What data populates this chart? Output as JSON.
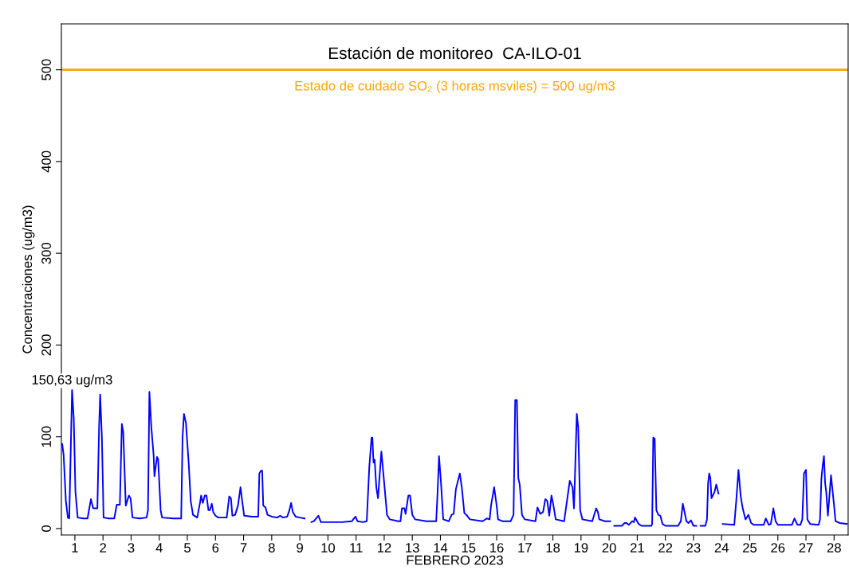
{
  "chart_data": {
    "type": "line",
    "title": "Estación de monitoreo  CA-ILO-01",
    "xlabel": "FEBRERO 2023",
    "ylabel": "Concentraciones (ug/m3)",
    "xlim": [
      0.52,
      28.5
    ],
    "xticks": [
      1,
      2,
      3,
      4,
      5,
      6,
      7,
      8,
      9,
      10,
      11,
      12,
      13,
      14,
      15,
      16,
      17,
      18,
      19,
      20,
      21,
      22,
      23,
      24,
      25,
      26,
      27,
      28
    ],
    "ylim": [
      -7,
      550
    ],
    "yticks": [
      0,
      100,
      200,
      300,
      400,
      500
    ],
    "grid": false,
    "legend": false,
    "marker": "none",
    "line_style": "solid",
    "ref_lines": [
      {
        "axis": "y",
        "value": 500,
        "label": "Estado de cuidado SO₂ (3 horas msviles) = 500 ug/m3",
        "color": "#ffa500",
        "line_style": "solid"
      }
    ],
    "annotations": [
      {
        "text": "150,63 ug/m3",
        "x": 0.9,
        "y": 150.63
      }
    ],
    "series": [
      {
        "color": "#0000ff",
        "x": [
          0.55,
          0.6,
          0.68,
          0.75,
          0.8,
          0.87,
          0.9,
          0.96,
          1.02,
          1.1,
          1.3,
          1.45,
          1.57,
          1.65,
          1.8,
          1.86,
          1.9,
          1.96,
          2.02,
          2.2,
          2.4,
          2.49,
          2.6,
          2.67,
          2.72,
          2.81,
          2.92,
          2.98,
          3.05,
          3.3,
          3.55,
          3.6,
          3.65,
          3.72,
          3.8,
          3.83,
          3.92,
          3.96,
          4.05,
          4.1,
          4.5,
          4.78,
          4.83,
          4.88,
          4.95,
          5.05,
          5.12,
          5.2,
          5.35,
          5.45,
          5.49,
          5.55,
          5.62,
          5.68,
          5.75,
          5.8,
          5.87,
          5.92,
          6.0,
          6.1,
          6.4,
          6.49,
          6.55,
          6.6,
          6.7,
          6.8,
          6.89,
          6.95,
          7.02,
          7.3,
          7.52,
          7.56,
          7.62,
          7.66,
          7.7,
          7.78,
          7.85,
          8.0,
          8.2,
          8.3,
          8.4,
          8.55,
          8.63,
          8.69,
          8.75,
          8.85,
          9.0,
          9.17,
          9.3,
          9.41,
          9.5,
          9.66,
          9.75,
          10.0,
          10.5,
          10.85,
          10.98,
          11.05,
          11.25,
          11.38,
          11.47,
          11.55,
          11.58,
          11.62,
          11.66,
          11.72,
          11.78,
          11.9,
          12.0,
          12.1,
          12.2,
          12.5,
          12.58,
          12.63,
          12.72,
          12.76,
          12.86,
          12.92,
          13.0,
          13.1,
          13.5,
          13.85,
          13.9,
          13.95,
          14.02,
          14.1,
          14.3,
          14.4,
          14.47,
          14.55,
          14.69,
          14.76,
          14.85,
          14.95,
          15.05,
          15.5,
          15.65,
          15.75,
          15.8,
          15.91,
          16.0,
          16.05,
          16.2,
          16.5,
          16.6,
          16.66,
          16.72,
          16.77,
          16.82,
          16.9,
          17.0,
          17.38,
          17.45,
          17.55,
          17.65,
          17.73,
          17.8,
          17.87,
          17.95,
          18.02,
          18.1,
          18.4,
          18.5,
          18.6,
          18.7,
          18.75,
          18.85,
          18.9,
          18.97,
          19.05,
          19.4,
          19.54,
          19.6,
          19.65,
          19.85,
          20.04,
          20.1,
          20.18,
          20.45,
          20.55,
          20.62,
          20.7,
          20.82,
          20.88,
          20.92,
          21.05,
          21.15,
          21.5,
          21.53,
          21.57,
          21.62,
          21.68,
          21.75,
          21.82,
          21.9,
          22.0,
          22.45,
          22.55,
          22.62,
          22.75,
          22.82,
          22.91,
          23.0,
          23.1,
          23.18,
          23.25,
          23.42,
          23.48,
          23.52,
          23.56,
          23.6,
          23.64,
          23.75,
          23.81,
          23.89,
          23.96,
          24.04,
          24.45,
          24.52,
          24.6,
          24.68,
          24.75,
          24.85,
          24.95,
          25.05,
          25.15,
          25.5,
          25.57,
          25.68,
          25.75,
          25.84,
          25.92,
          26.0,
          26.5,
          26.59,
          26.7,
          26.8,
          26.87,
          26.93,
          27.0,
          27.05,
          27.15,
          27.45,
          27.5,
          27.55,
          27.6,
          27.64,
          27.68,
          27.72,
          27.78,
          27.89,
          28.0,
          28.05,
          28.2,
          28.45
        ],
        "values": [
          92,
          80,
          30,
          12,
          11,
          110,
          151,
          120,
          40,
          12,
          11,
          11,
          32,
          22,
          22,
          110,
          146,
          100,
          12,
          11,
          11,
          26,
          26,
          114,
          105,
          25,
          36,
          33,
          12,
          11,
          12,
          20,
          149,
          110,
          80,
          57,
          78,
          76,
          20,
          12,
          11,
          11,
          100,
          125,
          115,
          70,
          30,
          15,
          12,
          28,
          36,
          28,
          36,
          36,
          20,
          20,
          27,
          18,
          14,
          12,
          12,
          35,
          33,
          14,
          15,
          25,
          45,
          30,
          14,
          13,
          13,
          60,
          63,
          63,
          25,
          23,
          15,
          13,
          12,
          14,
          12,
          13,
          20,
          28,
          18,
          13,
          12,
          11,
          null,
          7,
          8,
          14,
          7,
          7,
          7,
          8,
          13,
          8,
          7,
          8,
          67,
          99,
          99,
          72,
          75,
          45,
          33,
          84,
          50,
          15,
          10,
          8,
          8,
          22,
          22,
          16,
          36,
          36,
          15,
          10,
          8,
          8,
          40,
          79,
          50,
          10,
          8,
          15,
          16,
          43,
          60,
          45,
          17,
          14,
          10,
          8,
          11,
          10,
          25,
          45,
          25,
          10,
          8,
          8,
          15,
          140,
          140,
          55,
          48,
          15,
          10,
          8,
          23,
          16,
          18,
          32,
          30,
          14,
          36,
          25,
          10,
          8,
          30,
          52,
          45,
          22,
          125,
          110,
          20,
          10,
          8,
          22,
          18,
          10,
          8,
          8,
          null,
          3,
          3,
          6,
          6,
          4,
          8,
          7,
          12,
          5,
          3,
          3,
          5,
          99,
          98,
          20,
          15,
          14,
          5,
          3,
          3,
          8,
          27,
          8,
          6,
          9,
          3,
          3,
          null,
          3,
          3,
          10,
          50,
          60,
          55,
          33,
          40,
          48,
          38,
          null,
          5,
          4,
          30,
          64,
          35,
          22,
          10,
          15,
          6,
          4,
          4,
          11,
          4,
          5,
          22,
          8,
          4,
          4,
          11,
          4,
          4,
          10,
          60,
          64,
          10,
          5,
          4,
          10,
          55,
          70,
          79,
          50,
          40,
          14,
          58,
          25,
          8,
          6,
          5
        ]
      }
    ]
  }
}
